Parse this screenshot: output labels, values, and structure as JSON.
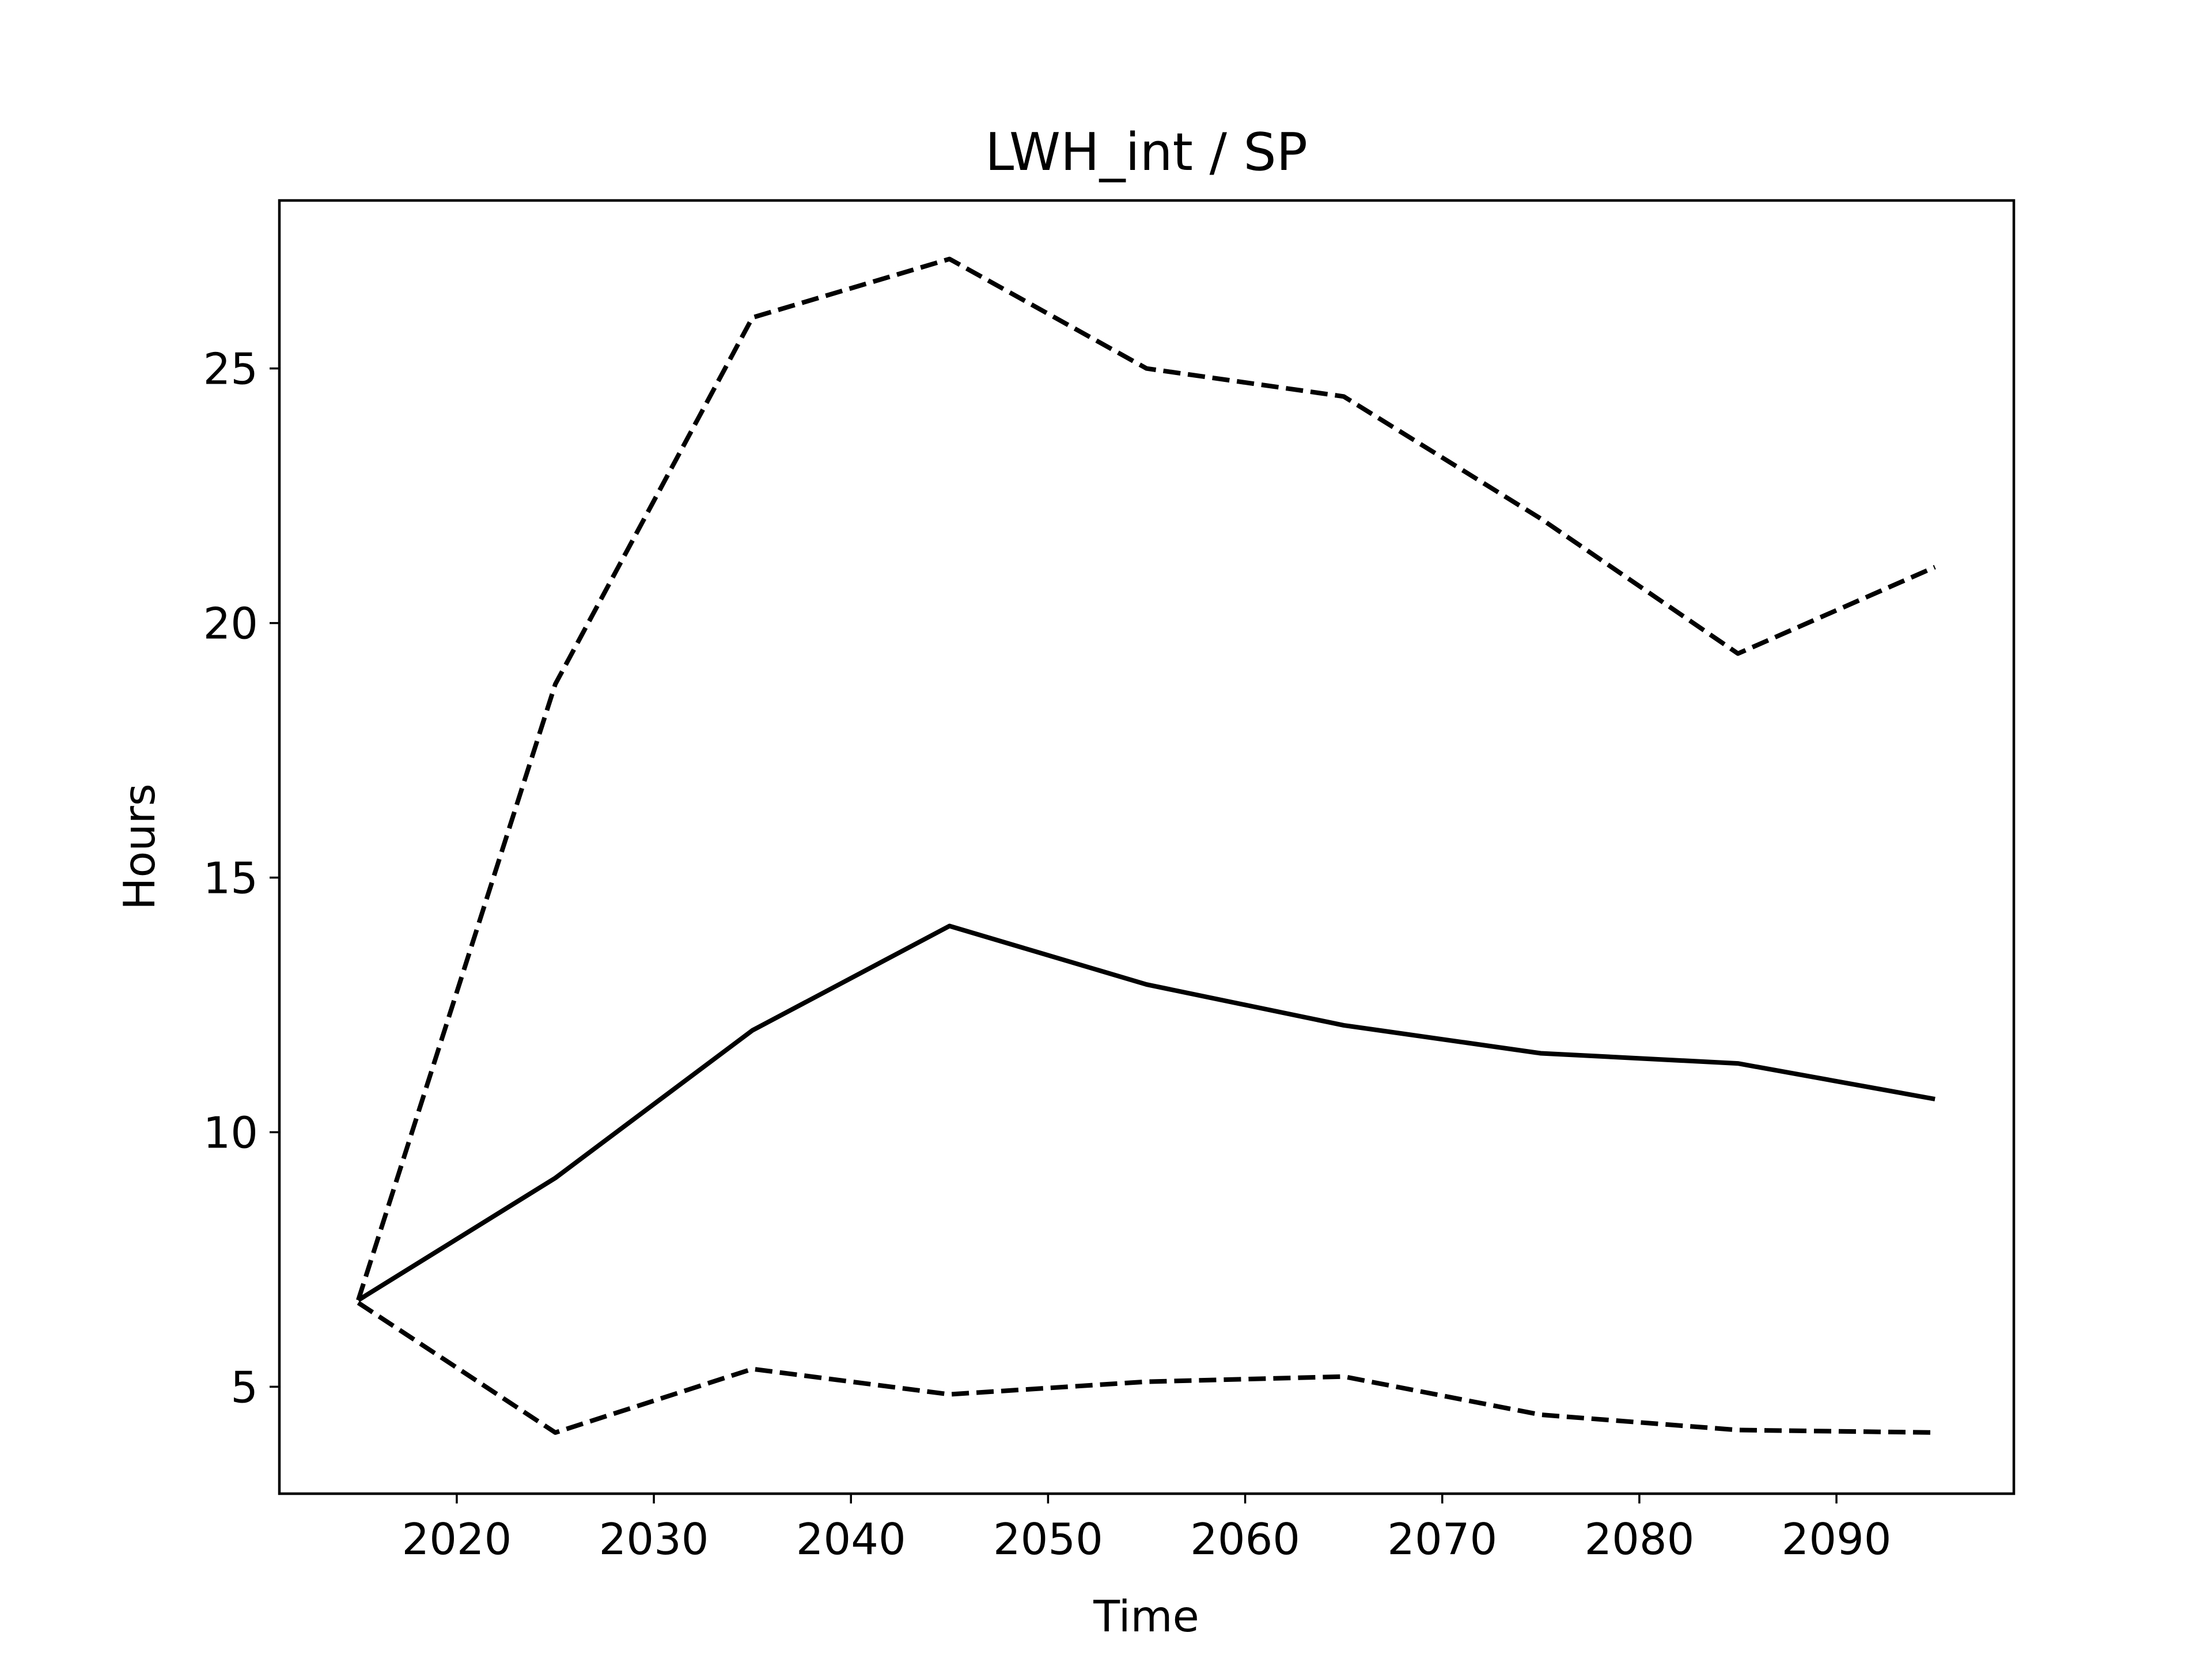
{
  "chart_data": {
    "type": "line",
    "title": "LWH_int / SP",
    "xlabel": "Time",
    "ylabel": "Hours",
    "xlim": [
      2011,
      2099
    ],
    "ylim": [
      2.9,
      28.3
    ],
    "xticks": [
      2020,
      2030,
      2040,
      2050,
      2060,
      2070,
      2080,
      2090
    ],
    "yticks": [
      5,
      10,
      15,
      20,
      25
    ],
    "grid": false,
    "legend": "none",
    "x": [
      2015,
      2025,
      2035,
      2045,
      2055,
      2065,
      2075,
      2085,
      2095
    ],
    "series": [
      {
        "style": "solid",
        "color": "#000000",
        "values": [
          6.7,
          9.1,
          12.0,
          14.05,
          12.9,
          12.1,
          11.55,
          11.35,
          10.65
        ]
      },
      {
        "style": "dashed",
        "color": "#000000",
        "values": [
          6.7,
          18.8,
          26.0,
          27.15,
          25.0,
          24.45,
          22.05,
          19.4,
          21.1
        ]
      },
      {
        "style": "dashed",
        "color": "#000000",
        "values": [
          6.65,
          4.1,
          5.35,
          4.85,
          5.1,
          5.2,
          4.45,
          4.15,
          4.1
        ]
      }
    ]
  }
}
